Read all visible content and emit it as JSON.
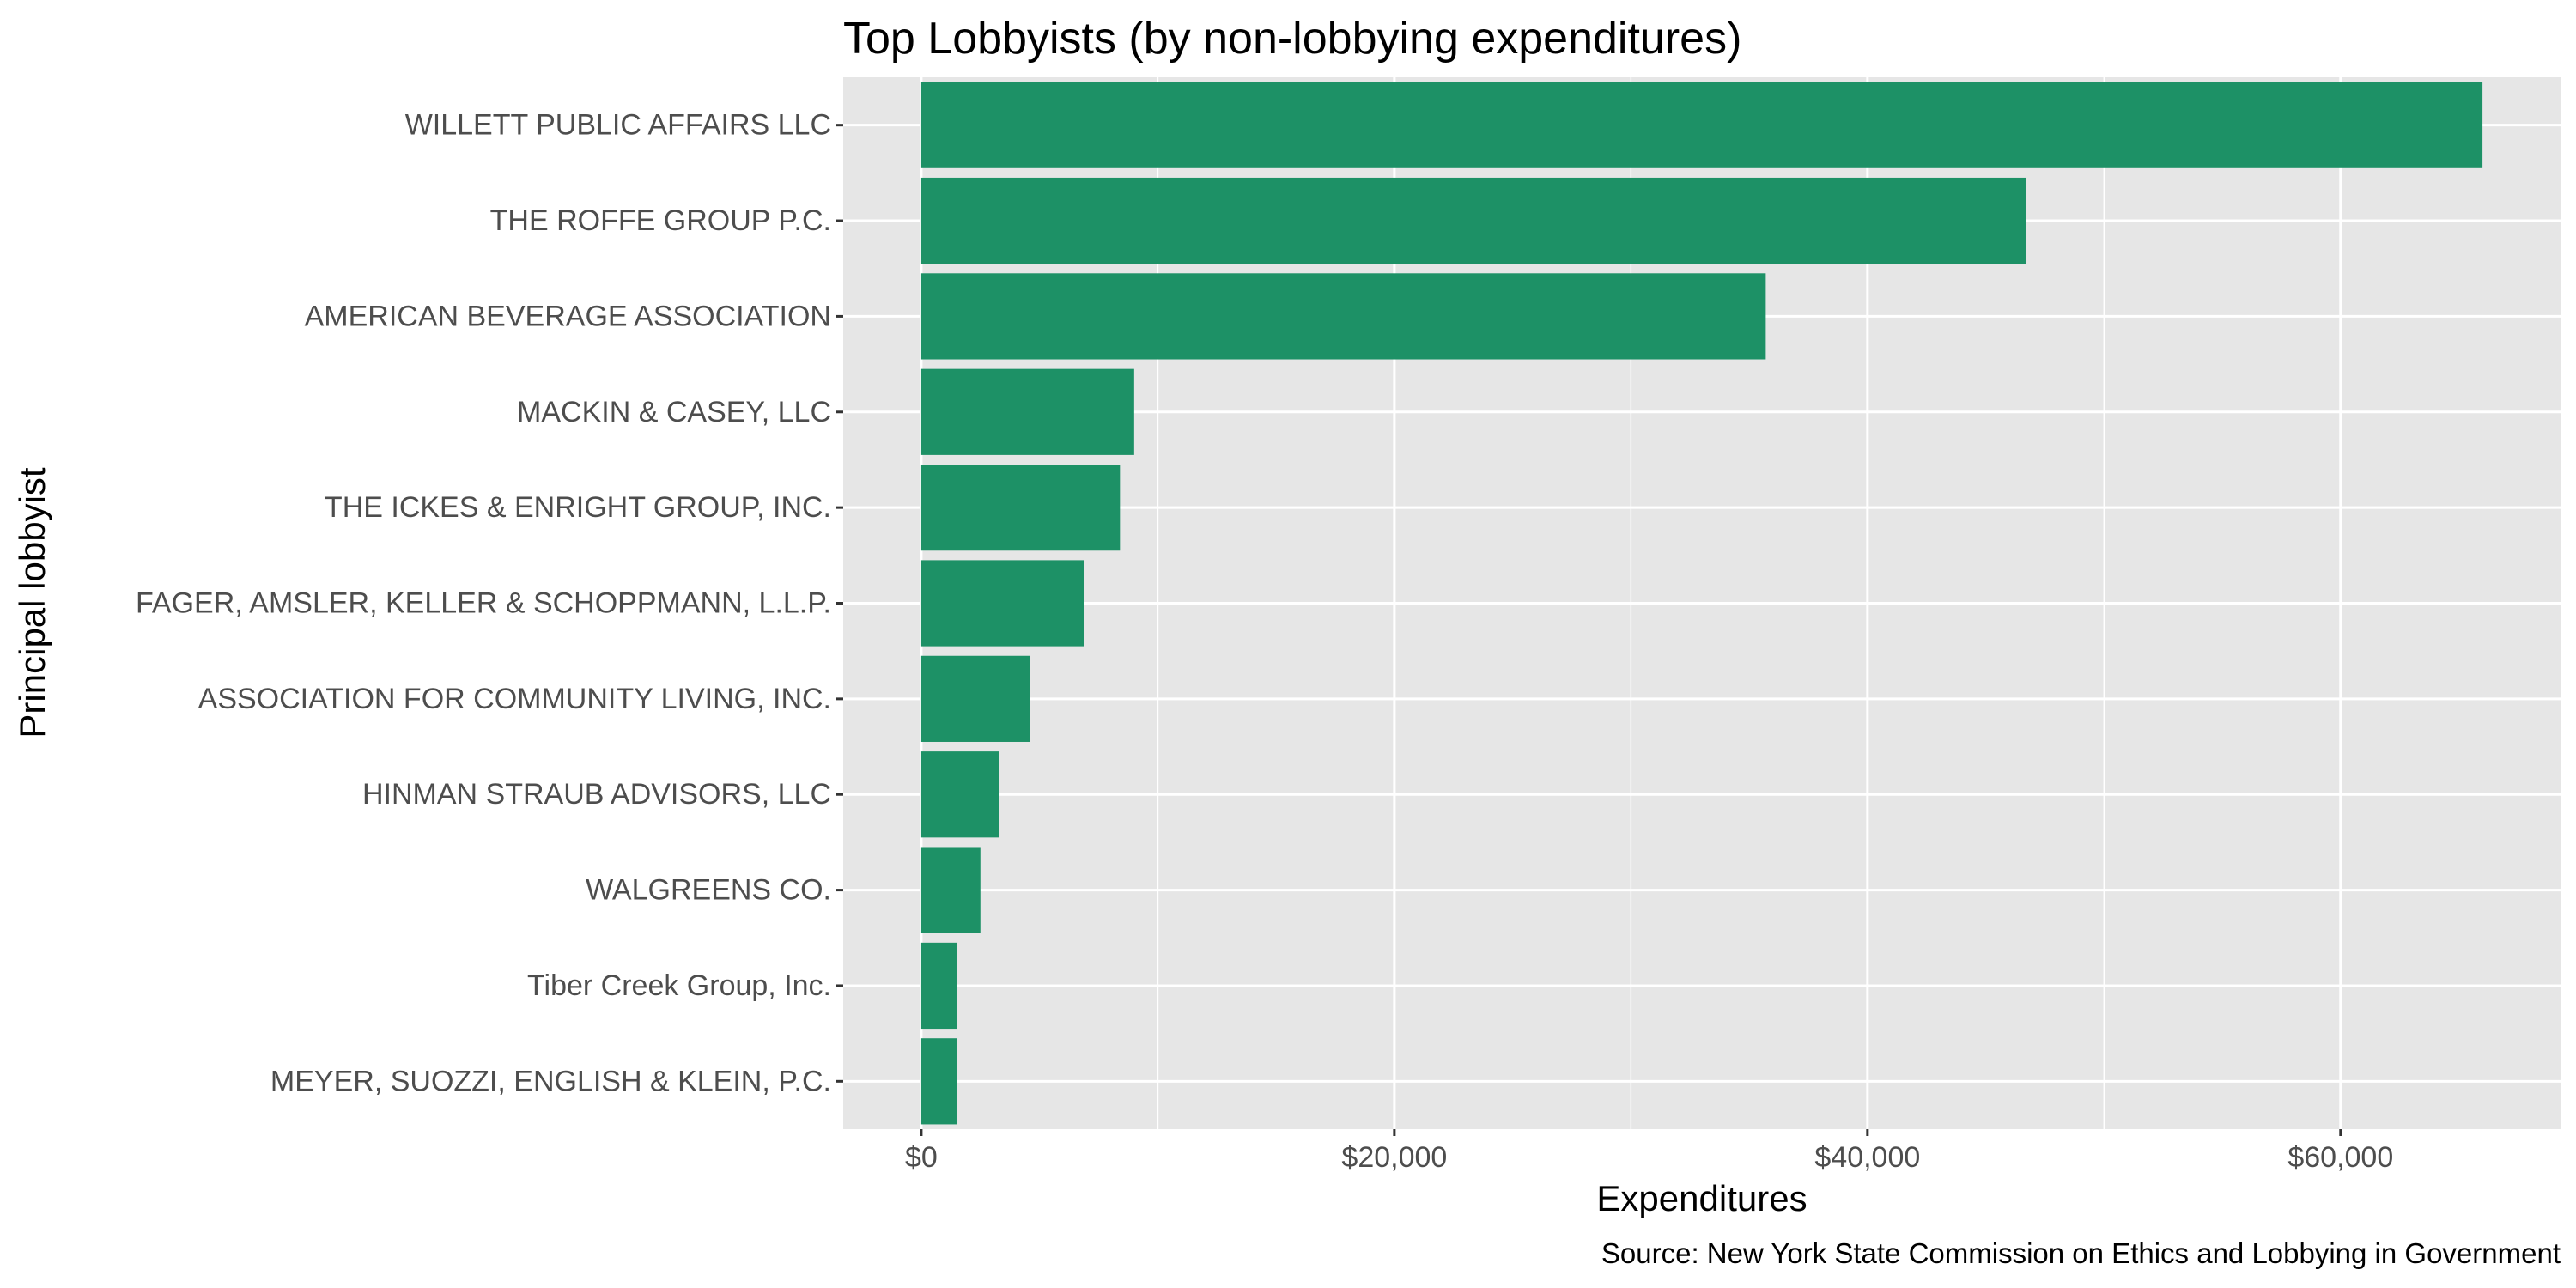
{
  "chart_data": {
    "type": "bar",
    "orientation": "horizontal",
    "title": "Top Lobbyists (by non-lobbying expenditures)",
    "xlabel": "Expenditures",
    "ylabel": "Principal lobbyist",
    "caption": "Source: New York State Commission on Ethics and Lobbying in Government",
    "categories": [
      "WILLETT PUBLIC AFFAIRS LLC",
      "THE ROFFE GROUP P.C.",
      "AMERICAN BEVERAGE ASSOCIATION",
      "MACKIN & CASEY, LLC",
      "THE ICKES & ENRIGHT GROUP, INC.",
      "FAGER, AMSLER, KELLER & SCHOPPMANN, L.L.P.",
      "ASSOCIATION FOR COMMUNITY LIVING, INC.",
      "HINMAN STRAUB ADVISORS, LLC",
      "WALGREENS CO.",
      "Tiber Creek Group, Inc.",
      "MEYER, SUOZZI, ENGLISH & KLEIN, P.C."
    ],
    "values": [
      66000,
      46700,
      35700,
      9000,
      8400,
      6900,
      4600,
      3300,
      2500,
      1500,
      1500
    ],
    "xlim": [
      -3300,
      69300
    ],
    "x_ticks": [
      0,
      20000,
      40000,
      60000
    ],
    "x_tick_labels": [
      "$0",
      "$20,000",
      "$40,000",
      "$60,000"
    ],
    "bar_color": "#1d9166",
    "panel_color": "#e6e6e6",
    "grid": true,
    "legend": "none"
  }
}
